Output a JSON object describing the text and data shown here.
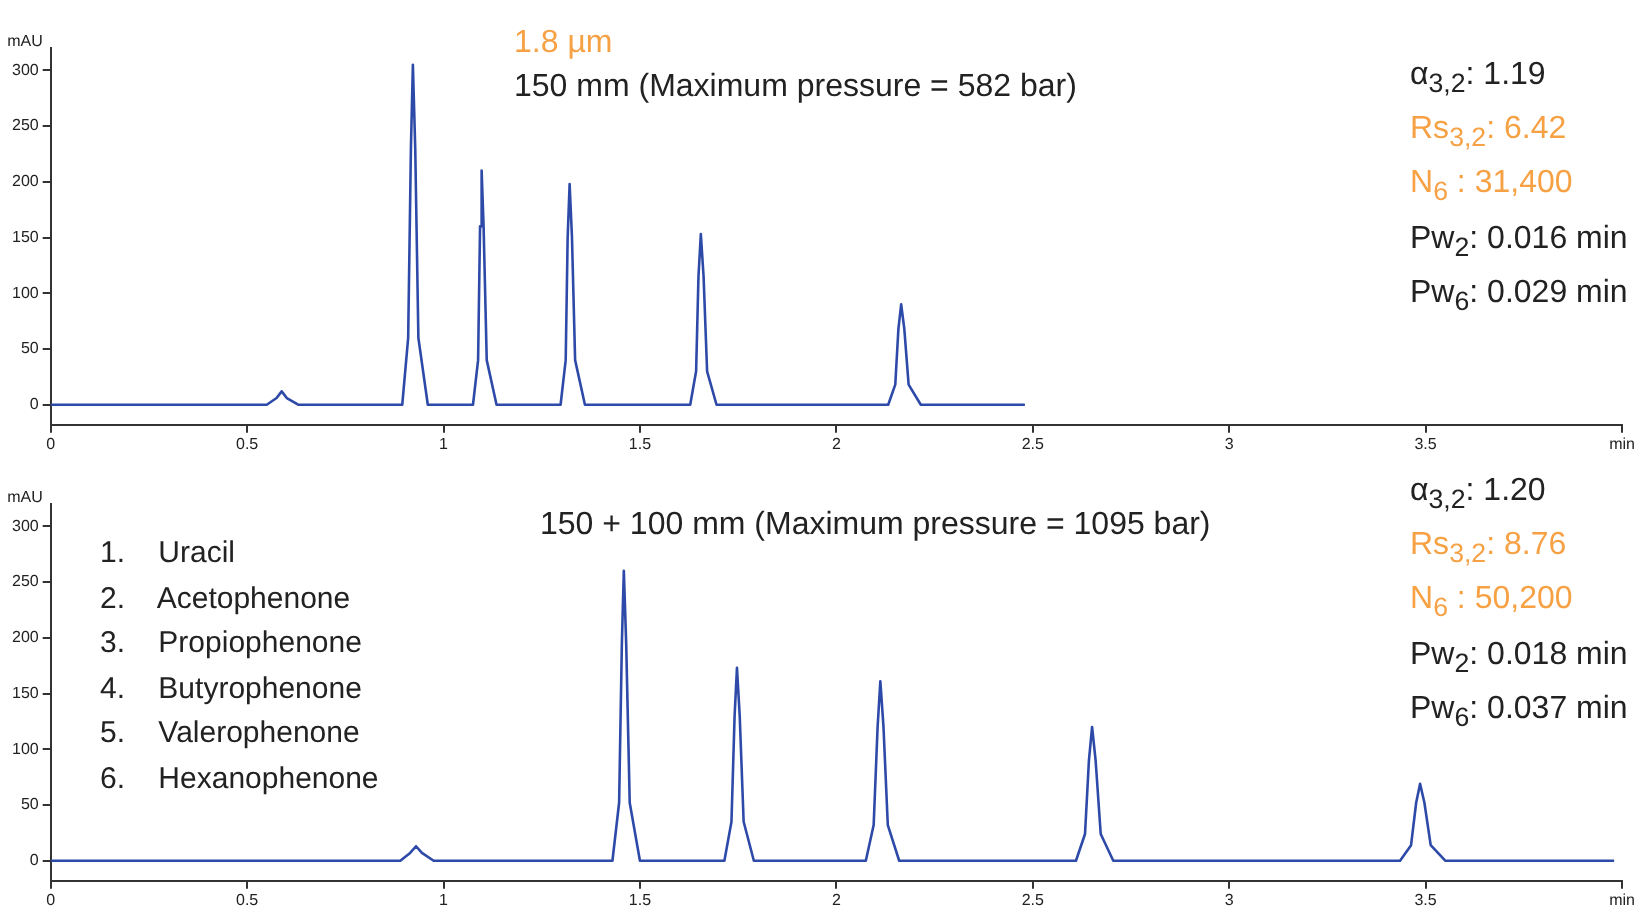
{
  "chart_data": [
    {
      "type": "line",
      "title": "1.8 µm",
      "subtitle": "150 mm (Maximum pressure = 582 bar)",
      "ylabel": "mAU",
      "xlim": [
        0,
        4
      ],
      "xticks": [
        0,
        0.5,
        1,
        1.5,
        2,
        2.5,
        3,
        3.5,
        {
          "value": 4,
          "label": "min"
        }
      ],
      "ylim": [
        -18,
        320
      ],
      "yticks": [
        0,
        50,
        100,
        150,
        200,
        250,
        300
      ],
      "grid": false,
      "legend": false,
      "marker": "none",
      "line_style": "solid",
      "annotations": [
        "α$_{3,2}$: 1.19",
        "Rs$_{3,2}$:  6.42",
        "N$_{6}$ : 31,400",
        "Pw$_{2}$: 0.016 min",
        "Pw$_{6}$: 0.029 min"
      ],
      "series": [
        {
          "color": "#2e4aa8",
          "x": [
            0,
            0.55,
            0.575,
            0.588,
            0.601,
            0.63,
            0.895,
            0.91,
            0.917,
            0.922,
            0.928,
            0.936,
            0.96,
            1.075,
            1.088,
            1.093,
            1.097,
            1.102,
            1.11,
            1.135,
            1.298,
            1.311,
            1.316,
            1.321,
            1.327,
            1.335,
            1.36,
            1.628,
            1.643,
            1.649,
            1.655,
            1.662,
            1.671,
            1.695,
            2.132,
            2.15,
            2.158,
            2.165,
            2.173,
            2.184,
            2.215,
            2.48
          ],
          "values": [
            0,
            0,
            6,
            12,
            6,
            0,
            0,
            60,
            230,
            305,
            230,
            60,
            0,
            0,
            40,
            160,
            210,
            160,
            40,
            0,
            0,
            40,
            150,
            198,
            150,
            40,
            0,
            0,
            30,
            115,
            153,
            115,
            30,
            0,
            0,
            18,
            68,
            90,
            68,
            18,
            0,
            0
          ]
        }
      ]
    },
    {
      "type": "line",
      "title": "150 + 100 mm (Maximum pressure = 1095 bar)",
      "ylabel": "mAU",
      "xlim": [
        0,
        4
      ],
      "xticks": [
        0,
        0.5,
        1,
        1.5,
        2,
        2.5,
        3,
        3.5,
        {
          "value": 4,
          "label": "min"
        }
      ],
      "ylim": [
        -18,
        320
      ],
      "yticks": [
        0,
        50,
        100,
        150,
        200,
        250,
        300
      ],
      "grid": false,
      "legend": false,
      "marker": "none",
      "line_style": "solid",
      "annotations": [
        "1.    Uracil",
        "2.    Acetophenone",
        "3.    Propiophenone",
        "4.    Butyrophenone",
        "5.    Valerophenone",
        "6.    Hexanophenone",
        "α$_{3,2}$: 1.20",
        "Rs$_{3,2}$:  8.76",
        "N$_{6}$ : 50,200",
        "Pw$_{2}$: 0.018 min",
        "Pw$_{6}$: 0.037 min"
      ],
      "series": [
        {
          "color": "#2e4aa8",
          "x": [
            0,
            0.89,
            0.915,
            0.93,
            0.945,
            0.975,
            1.43,
            1.447,
            1.454,
            1.459,
            1.465,
            1.474,
            1.5,
            1.715,
            1.733,
            1.741,
            1.747,
            1.754,
            1.764,
            1.79,
            2.075,
            2.095,
            2.105,
            2.112,
            2.12,
            2.131,
            2.16,
            2.61,
            2.633,
            2.643,
            2.651,
            2.66,
            2.673,
            2.705,
            3.435,
            3.463,
            3.476,
            3.486,
            3.497,
            3.513,
            3.55,
            3.98
          ],
          "values": [
            0,
            0,
            7,
            13,
            7,
            0,
            0,
            52,
            195,
            260,
            195,
            52,
            0,
            0,
            35,
            130,
            173,
            130,
            35,
            0,
            0,
            32,
            120,
            161,
            120,
            32,
            0,
            0,
            24,
            90,
            120,
            90,
            24,
            0,
            0,
            14,
            52,
            69,
            52,
            14,
            0,
            0
          ]
        }
      ]
    }
  ]
}
